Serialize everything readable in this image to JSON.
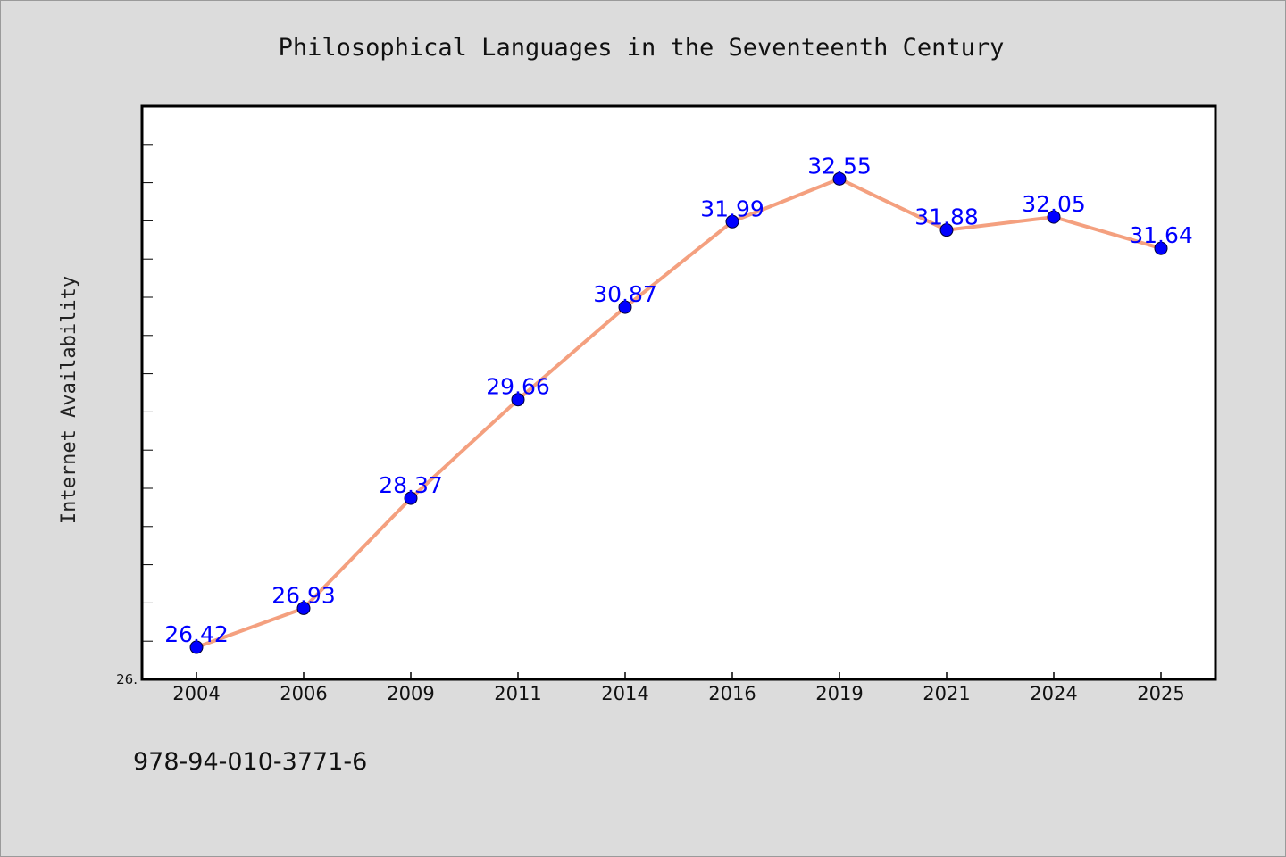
{
  "chart_data": {
    "type": "line",
    "title": "Philosophical Languages in the Seventeenth Century",
    "xlabel": "",
    "ylabel": "Internet Availability",
    "categories": [
      "2004",
      "2006",
      "2009",
      "2011",
      "2014",
      "2016",
      "2019",
      "2021",
      "2024",
      "2025"
    ],
    "series": [
      {
        "values": [
          26.42,
          26.93,
          28.37,
          29.66,
          30.87,
          31.99,
          32.55,
          31.88,
          32.05,
          31.64
        ],
        "data_labels": [
          "26.42",
          "26.93",
          "28.37",
          "29.66",
          "30.87",
          "31.99",
          "32.55",
          "31.88",
          "32.05",
          "31.64"
        ],
        "line_color": "#f4a07f",
        "marker_color": "#0000ff"
      }
    ],
    "ylim": [
      26.0,
      33.5
    ],
    "y_tick_label": "26.",
    "grid": false,
    "legend": "none",
    "plot_background": "#ffffff",
    "page_background": "#dcdcdc",
    "label_color": "#0000ff"
  },
  "footer": {
    "code": "978-94-010-3771-6"
  }
}
